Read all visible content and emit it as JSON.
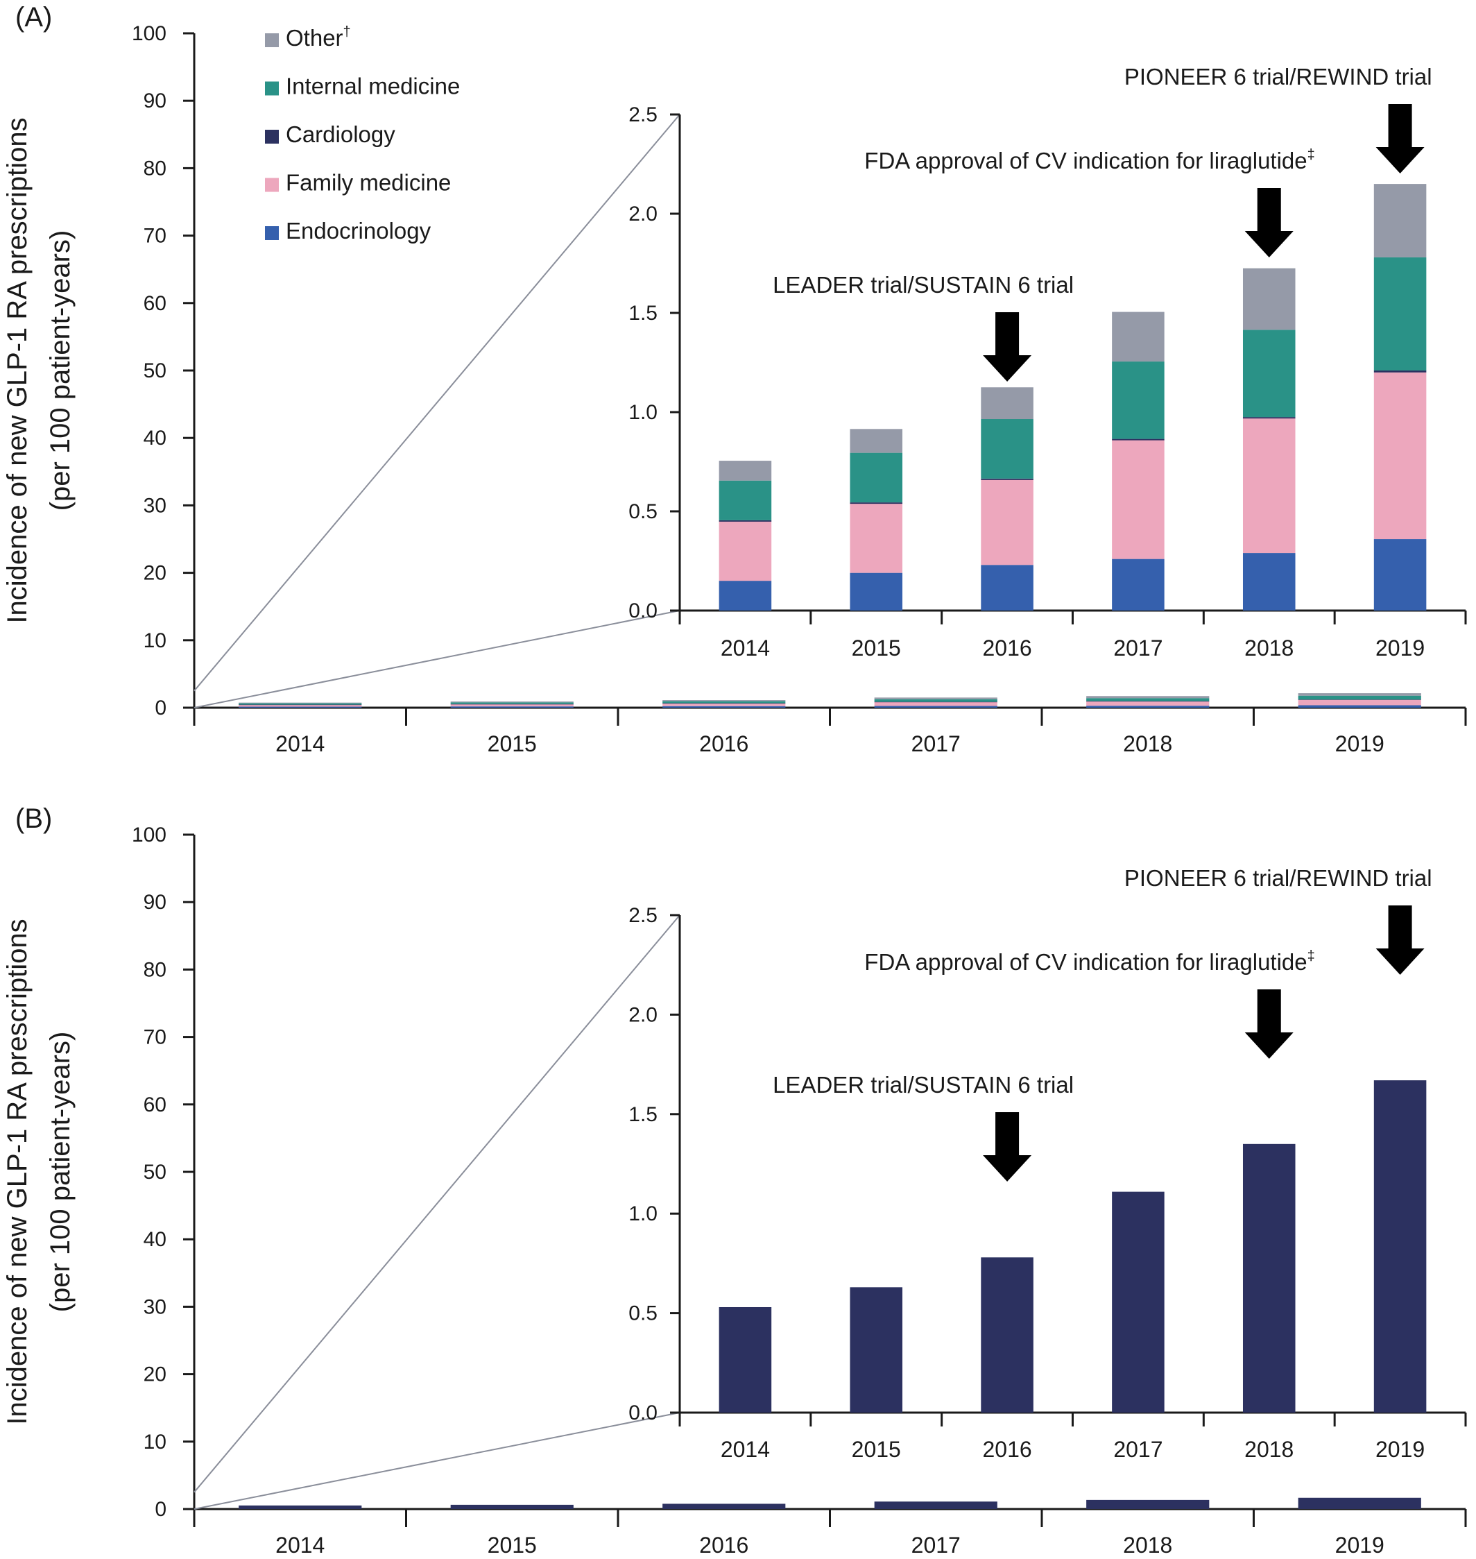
{
  "chart_data": [
    {
      "panel_label": "(A)",
      "type": "bar",
      "stacked": true,
      "categories": [
        "2014",
        "2015",
        "2016",
        "2017",
        "2018",
        "2019"
      ],
      "ylabel_line1": "Incidence of new GLP-1 RA prescriptions",
      "ylabel_line2": "(per 100 patient-years)",
      "ylim": [
        0,
        100
      ],
      "yticks": [
        "0",
        "10",
        "20",
        "30",
        "40",
        "50",
        "60",
        "70",
        "80",
        "90",
        "100"
      ],
      "series": [
        {
          "name": "Endocrinology",
          "color": "#3560ad",
          "values": [
            0.15,
            0.19,
            0.23,
            0.26,
            0.29,
            0.36
          ]
        },
        {
          "name": "Family medicine",
          "color": "#eda7bd",
          "values": [
            0.3,
            0.35,
            0.43,
            0.6,
            0.68,
            0.84
          ]
        },
        {
          "name": "Cardiology",
          "color": "#2c3160",
          "values": [
            0.005,
            0.005,
            0.005,
            0.005,
            0.005,
            0.01
          ]
        },
        {
          "name": "Internal medicine",
          "color": "#2a9287",
          "values": [
            0.2,
            0.25,
            0.3,
            0.39,
            0.44,
            0.57
          ]
        },
        {
          "name": "Other",
          "color": "#959aa8",
          "values": [
            0.1,
            0.12,
            0.16,
            0.25,
            0.31,
            0.37
          ]
        }
      ],
      "legend": {
        "placement": "top-left",
        "entries": [
          {
            "label": "Other",
            "sup": "†",
            "color": "#959aa8"
          },
          {
            "label": "Internal medicine",
            "sup": "",
            "color": "#2a9287"
          },
          {
            "label": "Cardiology",
            "sup": "",
            "color": "#2c3160"
          },
          {
            "label": "Family medicine",
            "sup": "",
            "color": "#eda7bd"
          },
          {
            "label": "Endocrinology",
            "sup": "",
            "color": "#3560ad"
          }
        ]
      },
      "inset": {
        "ylim": [
          0,
          2.5
        ],
        "yticks": [
          "0.0",
          "0.5",
          "1.0",
          "1.5",
          "2.0",
          "2.5"
        ]
      },
      "annotations": [
        {
          "text": "LEADER trial/SUSTAIN 6 trial",
          "sup": "",
          "category": "2016"
        },
        {
          "text": "FDA approval of CV indication for liraglutide",
          "sup": "‡",
          "category": "2018"
        },
        {
          "text": "PIONEER 6 trial/REWIND trial",
          "sup": "",
          "category": "2019"
        }
      ]
    },
    {
      "panel_label": "(B)",
      "type": "bar",
      "stacked": false,
      "categories": [
        "2014",
        "2015",
        "2016",
        "2017",
        "2018",
        "2019"
      ],
      "ylabel_line1": "Incidence of new GLP-1 RA prescriptions",
      "ylabel_line2": "(per 100 patient-years)",
      "ylim": [
        0,
        100
      ],
      "yticks": [
        "0",
        "10",
        "20",
        "30",
        "40",
        "50",
        "60",
        "70",
        "80",
        "90",
        "100"
      ],
      "series": [
        {
          "color": "#2c3160",
          "values": [
            0.53,
            0.63,
            0.78,
            1.11,
            1.35,
            1.67
          ]
        }
      ],
      "inset": {
        "ylim": [
          0,
          2.5
        ],
        "yticks": [
          "0.0",
          "0.5",
          "1.0",
          "1.5",
          "2.0",
          "2.5"
        ]
      },
      "annotations": [
        {
          "text": "LEADER trial/SUSTAIN 6 trial",
          "sup": "",
          "category": "2016"
        },
        {
          "text": "FDA approval of CV indication for liraglutide",
          "sup": "‡",
          "category": "2018"
        },
        {
          "text": "PIONEER 6 trial/REWIND trial",
          "sup": "",
          "category": "2019"
        }
      ]
    }
  ]
}
